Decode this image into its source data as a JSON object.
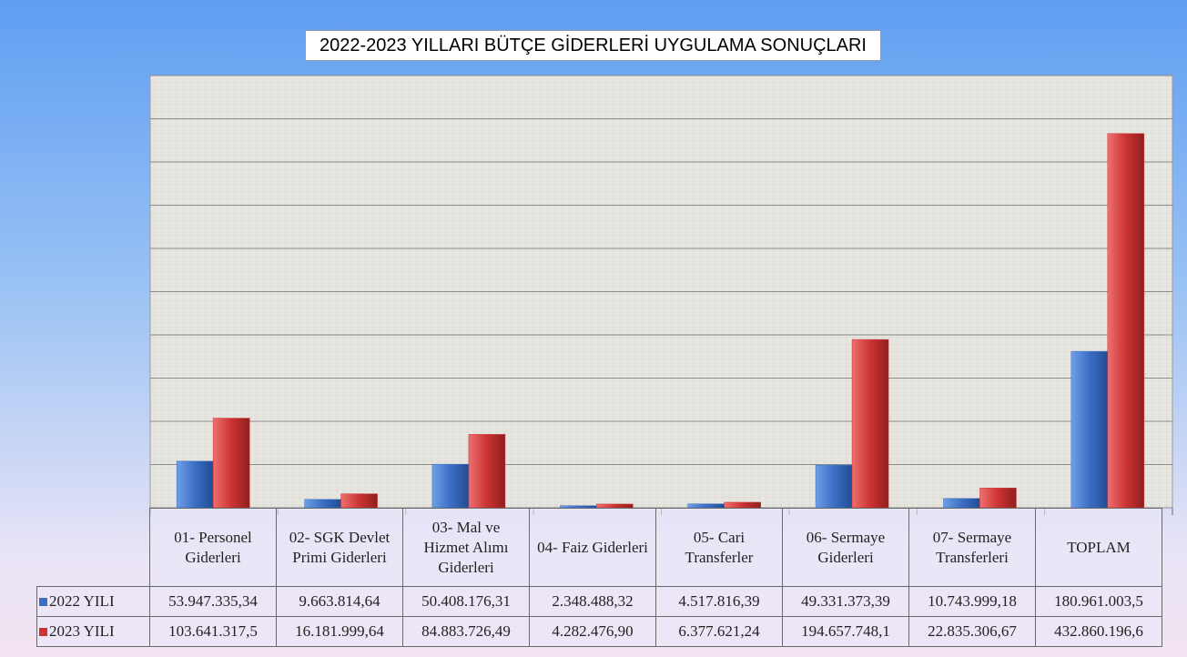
{
  "chart_data": {
    "type": "bar",
    "title": "2022-2023 YILLARI BÜTÇE GİDERLERİ UYGULAMA SONUÇLARI",
    "categories": [
      "01- Personel Giderleri",
      "02- SGK Devlet Primi Giderleri",
      "03- Mal ve Hizmet Alımı Giderleri",
      "04- Faiz Giderleri",
      "05- Cari Transferler",
      "06- Sermaye Giderleri",
      "07- Sermaye Transferleri",
      "TOPLAM"
    ],
    "series": [
      {
        "name": "2022 YILI",
        "color": "#3b6fc4",
        "values": [
          53947335.34,
          9663814.64,
          50408176.31,
          2348488.32,
          4517816.39,
          49331373.39,
          10743999.18,
          180961003.5
        ],
        "value_labels": [
          "53.947.335,34",
          "9.663.814,64",
          "50.408.176,31",
          "2.348.488,32",
          "4.517.816,39",
          "49.331.373,39",
          "10.743.999,18",
          "180.961.003,5"
        ]
      },
      {
        "name": "2023 YILI",
        "color": "#cc3333",
        "values": [
          103641317.5,
          16181999.64,
          84883726.49,
          4282476.9,
          6377621.24,
          194657748.1,
          22835306.67,
          432860196.6
        ],
        "value_labels": [
          "103.641.317,5",
          "16.181.999,64",
          "84.883.726,49",
          "4.282.476,90",
          "6.377.621,24",
          "194.657.748,1",
          "22.835.306,67",
          "432.860.196,6"
        ]
      }
    ],
    "ylim": [
      0,
      500000000
    ],
    "yticks": [
      0,
      50000000,
      100000000,
      150000000,
      200000000,
      250000000,
      300000000,
      350000000,
      400000000,
      450000000,
      500000000
    ],
    "grid": true
  }
}
